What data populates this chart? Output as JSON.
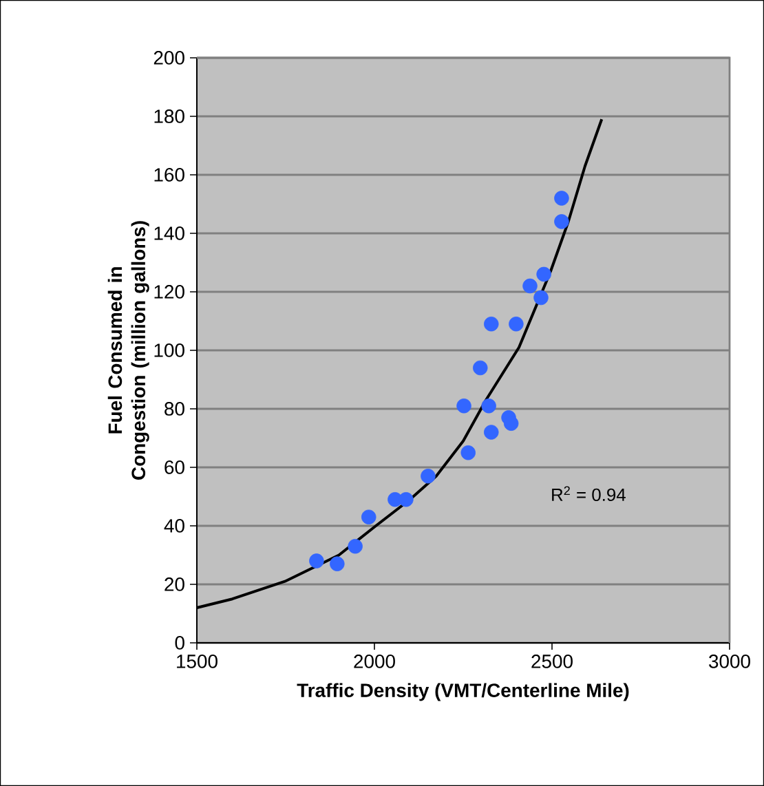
{
  "chart_data": {
    "type": "scatter",
    "xlabel": "Traffic Density (VMT/Centerline Mile)",
    "ylabel": "Fuel Consumed in Congestion (million gallons)",
    "annotations": [
      "R$^{2}$ = 0.94"
    ],
    "xlim": [
      1500,
      3000
    ],
    "xticks": [
      1500,
      2000,
      2500,
      3000
    ],
    "ylim": [
      0,
      200
    ],
    "yticks": [
      0,
      20,
      40,
      60,
      80,
      100,
      120,
      140,
      160,
      180,
      200
    ],
    "grid": "y",
    "series": [
      {
        "marker": "circle",
        "color": "#3366ff",
        "x": [
          1837,
          1895,
          1946,
          1984,
          2058,
          2089,
          2151,
          2264,
          2252,
          2322,
          2329,
          2378,
          2385,
          2298,
          2329,
          2399,
          2438,
          2469,
          2477,
          2527,
          2527
        ],
        "values": [
          28,
          27,
          33,
          43,
          49,
          49,
          57,
          65,
          81,
          81,
          72,
          77,
          75,
          94,
          109,
          109,
          122,
          118,
          126,
          144,
          152
        ]
      },
      {
        "type": "line",
        "marker": "none",
        "line_style": "solid",
        "color": "#000000",
        "x": [
          1500,
          1600,
          1748,
          1900,
          2004,
          2100,
          2174,
          2250,
          2314,
          2407,
          2496,
          2546,
          2593,
          2640
        ],
        "values": [
          12,
          15,
          21,
          30,
          40,
          49,
          57,
          69,
          83,
          101,
          127,
          144,
          163,
          179
        ]
      }
    ]
  }
}
